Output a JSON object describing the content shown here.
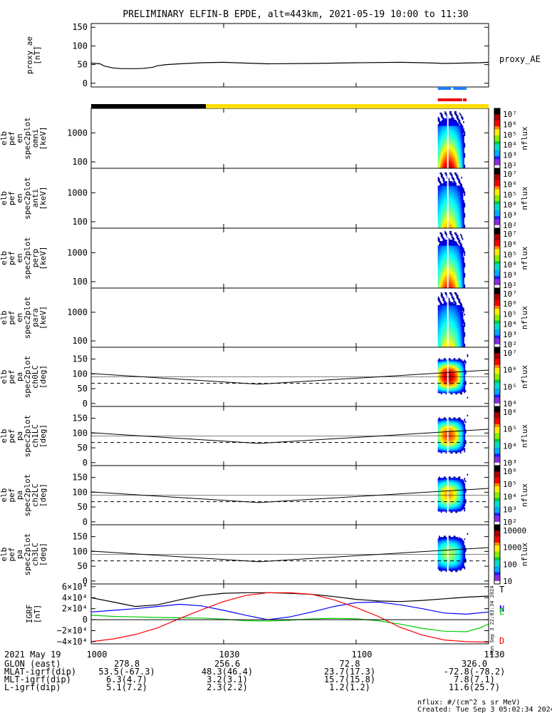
{
  "title": "PRELIMINARY ELFIN-B EPDE, alt=443km, 2021-05-19 10:00 to 11:30",
  "time": {
    "start_min": 0,
    "end_min": 90,
    "ticks": [
      {
        "t": 0,
        "label": "1000"
      },
      {
        "t": 30,
        "label": "1030"
      },
      {
        "t": 60,
        "label": "1100"
      },
      {
        "t": 90,
        "label": "1130"
      }
    ]
  },
  "chart_data": [
    {
      "id": "proxy_ae",
      "type": "line",
      "ylabel_lines": [
        "proxy_ae",
        "[nT]"
      ],
      "ylim": [
        -10,
        160
      ],
      "yticks": [
        0,
        50,
        100,
        150
      ],
      "series": [
        {
          "name": "proxy_AE",
          "color": "#000000",
          "x": [
            0,
            2,
            3,
            5,
            7,
            10,
            12,
            14,
            15,
            17,
            20,
            25,
            30,
            35,
            40,
            50,
            60,
            70,
            75,
            78,
            80,
            88,
            90
          ],
          "y": [
            54,
            52,
            46,
            41,
            39,
            39,
            40,
            43,
            47,
            50,
            52,
            55,
            56,
            54,
            52,
            53,
            55,
            56,
            55,
            54,
            53,
            55,
            56
          ]
        }
      ]
    },
    {
      "id": "en_omni",
      "type": "heatmap",
      "ylabel_lines": [
        "elb",
        "pef",
        "en",
        "spec2plot",
        "omni",
        "[keV]"
      ],
      "yticks": [
        100,
        1000
      ],
      "ylim": [
        60,
        7000
      ],
      "ylog": true,
      "zlabel": "nflux",
      "zticks": [
        "10⁷",
        "10⁶",
        "10⁵",
        "10⁴",
        "10³",
        "10²"
      ],
      "intensity": 1.0
    },
    {
      "id": "en_anti",
      "type": "heatmap",
      "ylabel_lines": [
        "elb",
        "pef",
        "en",
        "spec2plot",
        "anti",
        "[keV]"
      ],
      "yticks": [
        100,
        1000
      ],
      "ylim": [
        60,
        7000
      ],
      "ylog": true,
      "zlabel": "nflux",
      "zticks": [
        "10⁷",
        "10⁶",
        "10⁵",
        "10⁴",
        "10³",
        "10²"
      ],
      "intensity": 0.75
    },
    {
      "id": "en_perp",
      "type": "heatmap",
      "ylabel_lines": [
        "elb",
        "pef",
        "en",
        "spec2plot",
        "perp",
        "[keV]"
      ],
      "yticks": [
        100,
        1000
      ],
      "ylim": [
        60,
        7000
      ],
      "ylog": true,
      "zlabel": "nflux",
      "zticks": [
        "10⁷",
        "10⁶",
        "10⁵",
        "10⁴",
        "10³",
        "10²"
      ],
      "intensity": 0.9
    },
    {
      "id": "en_para",
      "type": "heatmap",
      "ylabel_lines": [
        "elb",
        "pef",
        "en",
        "spec2plot",
        "para",
        "[keV]"
      ],
      "yticks": [
        100,
        1000
      ],
      "ylim": [
        60,
        7000
      ],
      "ylog": true,
      "zlabel": "nflux",
      "zticks": [
        "10⁷",
        "10⁶",
        "10⁵",
        "10⁴",
        "10³",
        "10²"
      ],
      "intensity": 0.7
    },
    {
      "id": "pa_ch0",
      "type": "heatmap",
      "ylabel_lines": [
        "elb",
        "pef",
        "pa",
        "spec2plot",
        "ch0LC",
        "[deg]"
      ],
      "yticks": [
        0,
        50,
        100,
        150
      ],
      "ylim": [
        -10,
        190
      ],
      "zlabel": "nflux",
      "zticks": [
        "10⁷",
        "10⁶",
        "10⁵",
        "10⁴"
      ],
      "intensity": 1.0
    },
    {
      "id": "pa_ch1",
      "type": "heatmap",
      "ylabel_lines": [
        "elb",
        "pef",
        "pa",
        "spec2plot",
        "ch1LC",
        "[deg]"
      ],
      "yticks": [
        0,
        50,
        100,
        150
      ],
      "ylim": [
        -10,
        190
      ],
      "zlabel": "nflux",
      "zticks": [
        "10⁶",
        "10⁵",
        "10⁴",
        "10³"
      ],
      "intensity": 0.85
    },
    {
      "id": "pa_ch2",
      "type": "heatmap",
      "ylabel_lines": [
        "elb",
        "pef",
        "pa",
        "spec2plot",
        "ch2LC",
        "[deg]"
      ],
      "yticks": [
        0,
        50,
        100,
        150
      ],
      "ylim": [
        -10,
        190
      ],
      "zlabel": "nflux",
      "zticks": [
        "10⁶",
        "10⁵",
        "10⁴",
        "10³",
        "10²"
      ],
      "intensity": 0.75
    },
    {
      "id": "pa_ch3",
      "type": "heatmap",
      "ylabel_lines": [
        "elb",
        "pef",
        "pa",
        "spec2plot",
        "ch3LC",
        "[deg]"
      ],
      "yticks": [
        0,
        50,
        100,
        150
      ],
      "ylim": [
        -10,
        190
      ],
      "zlabel": "nflux",
      "zticks": [
        "10000",
        "1000",
        "100",
        "10"
      ],
      "intensity": 0.6
    },
    {
      "id": "igrf",
      "type": "line",
      "ylabel_lines": [
        "IGRF",
        "[nT]"
      ],
      "ylim": [
        -44000,
        65000
      ],
      "yticks": [
        {
          "v": -40000,
          "label": "−4×10⁴"
        },
        {
          "v": -20000,
          "label": "−2×10⁴"
        },
        {
          "v": 0,
          "label": "0"
        },
        {
          "v": 20000,
          "label": "2×10⁴"
        },
        {
          "v": 40000,
          "label": "4×10⁴"
        },
        {
          "v": 60000,
          "label": "6×10⁴"
        }
      ],
      "series": [
        {
          "name": "T",
          "color": "#000000",
          "x": [
            0,
            5,
            10,
            15,
            20,
            25,
            30,
            35,
            40,
            45,
            50,
            55,
            60,
            65,
            70,
            75,
            80,
            85,
            90
          ],
          "y": [
            40000,
            32000,
            24000,
            27000,
            36000,
            44000,
            48000,
            49000,
            49000,
            48000,
            46000,
            42000,
            37000,
            34000,
            33000,
            35000,
            38000,
            41000,
            43000
          ]
        },
        {
          "name": "N",
          "color": "#0000ff",
          "x": [
            0,
            5,
            10,
            15,
            20,
            25,
            30,
            35,
            40,
            45,
            50,
            55,
            60,
            65,
            70,
            75,
            80,
            85,
            90
          ],
          "y": [
            14000,
            17000,
            20000,
            24000,
            28000,
            25000,
            17000,
            8000,
            0,
            5000,
            14000,
            24000,
            31000,
            32000,
            27000,
            20000,
            12000,
            10000,
            14000
          ]
        },
        {
          "name": "E",
          "color": "#00cc00",
          "x": [
            0,
            5,
            10,
            15,
            20,
            25,
            30,
            35,
            40,
            45,
            50,
            55,
            60,
            65,
            70,
            75,
            80,
            85,
            88,
            90
          ],
          "y": [
            8000,
            6000,
            5000,
            4000,
            3500,
            3000,
            1000,
            -2000,
            -2500,
            -1000,
            1500,
            2500,
            1500,
            -2000,
            -8000,
            -16000,
            -21000,
            -22000,
            -15000,
            -8000
          ]
        },
        {
          "name": "D",
          "color": "#ff0000",
          "x": [
            0,
            5,
            10,
            15,
            20,
            25,
            30,
            35,
            40,
            45,
            50,
            55,
            60,
            65,
            70,
            75,
            80,
            85,
            90
          ],
          "y": [
            -40000,
            -35000,
            -27000,
            -15000,
            2000,
            18000,
            33000,
            44000,
            49000,
            49000,
            46000,
            36000,
            22000,
            6000,
            -14000,
            -28000,
            -37000,
            -40000,
            -41000
          ]
        }
      ]
    }
  ],
  "legends": {
    "proxy": "proxy_AE",
    "igrf": [
      "T",
      "N",
      "E",
      "D"
    ]
  },
  "footer": {
    "date": "2021 May 19",
    "rows": [
      {
        "label": "GLON (east)",
        "vals": [
          "278.8",
          "256.6",
          "72.8",
          "326.0"
        ]
      },
      {
        "label": "MLAT-igrf(dip)",
        "vals": [
          "53.5(-67.3)",
          "48.3(46.4)",
          "23.7(17.3)",
          "-72.8(-78.2)"
        ]
      },
      {
        "label": "MLT-igrf(dip)",
        "vals": [
          "6.3(4.7)",
          "3.2(3.1)",
          "15.7(15.8)",
          "7.8(7.1)"
        ]
      },
      {
        "label": "L-igrf(dip)",
        "vals": [
          "5.1(7.2)",
          "2.3(2.2)",
          "1.2(1.2)",
          "11.6(25.7)"
        ]
      }
    ],
    "units": "nflux: #/(cm^2 s sr MeV)",
    "created": "Created: Tue Sep  3 05:02:34 2024",
    "stamp": "Mon Sep  3 22:03:34 2024"
  },
  "colors": {
    "sunlit": "#ffdd00",
    "shadow": "#000000",
    "blue_bar": "#1a7cff",
    "red_bar": "#ee0000"
  },
  "bars": {
    "shadow_end_min": 26,
    "blue_segments": [
      [
        78.5,
        81.5
      ],
      [
        82,
        85
      ]
    ],
    "red_segments": [
      [
        78.5,
        84
      ],
      [
        84.2,
        85
      ]
    ]
  }
}
